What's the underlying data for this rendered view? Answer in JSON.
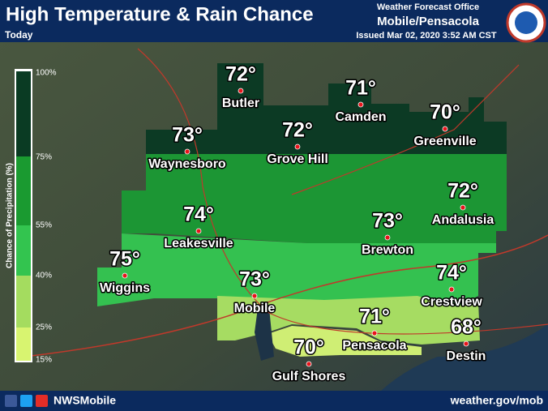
{
  "header": {
    "title": "High Temperature & Rain Chance",
    "subtitle": "Today",
    "office_line": "Weather Forecast Office",
    "office": "Mobile/Pensacola",
    "issued": "Issued Mar 02, 2020 3:52 AM CST"
  },
  "legend": {
    "label": "Chance of Precipitation (%)",
    "levels": [
      "100%",
      "75%",
      "55%",
      "40%",
      "25%",
      "15%"
    ]
  },
  "cities": [
    {
      "name": "Butler",
      "temp": "72°"
    },
    {
      "name": "Camden",
      "temp": "71°"
    },
    {
      "name": "Greenville",
      "temp": "70°"
    },
    {
      "name": "Waynesboro",
      "temp": "73°"
    },
    {
      "name": "Grove Hill",
      "temp": "72°"
    },
    {
      "name": "Andalusia",
      "temp": "72°"
    },
    {
      "name": "Leakesville",
      "temp": "74°"
    },
    {
      "name": "Brewton",
      "temp": "73°"
    },
    {
      "name": "Wiggins",
      "temp": "75°"
    },
    {
      "name": "Crestview",
      "temp": "74°"
    },
    {
      "name": "Mobile",
      "temp": "73°"
    },
    {
      "name": "Pensacola",
      "temp": "71°"
    },
    {
      "name": "Gulf Shores",
      "temp": "70°"
    },
    {
      "name": "Destin",
      "temp": "68°"
    }
  ],
  "footer": {
    "handle": "NWSMobile",
    "url": "weather.gov/mob"
  }
}
